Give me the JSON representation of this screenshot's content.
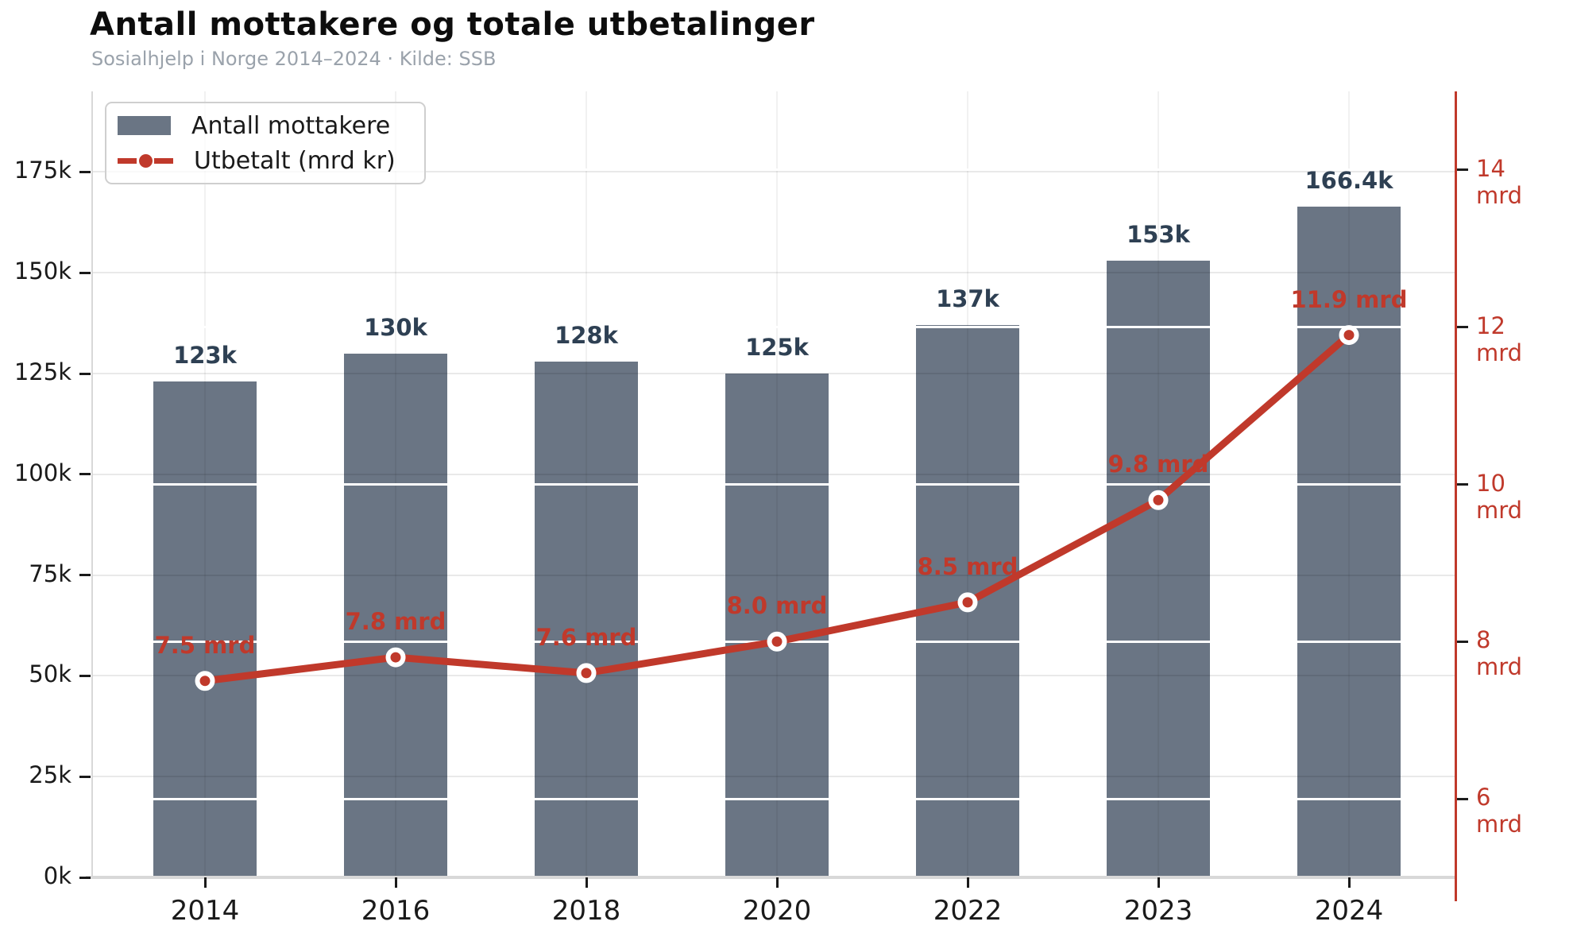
{
  "header": {
    "title": "Antall mottakere og totale utbetalinger",
    "subtitle": "Sosialhjelp i Norge 2014–2024 · Kilde: SSB"
  },
  "legend": {
    "bar_label": "Antall mottakere",
    "line_label": "Utbetalt (mrd kr)"
  },
  "colors": {
    "bar": "#6a7584",
    "bar_value_label": "#2e4053",
    "line": "#c0392b",
    "right_axis": "#c0392b",
    "axis_text": "#1a1a1a",
    "subtitle_gray": "#9aa2ab",
    "marker_ring": "#ffffff"
  },
  "chart_data": {
    "type": "bar",
    "subtype": "combo bar + line, dual y-axes",
    "categories": [
      "2014",
      "2016",
      "2018",
      "2020",
      "2022",
      "2023",
      "2024"
    ],
    "series": [
      {
        "name": "Antall mottakere",
        "type": "bar",
        "axis": "left",
        "values": [
          123,
          130,
          128,
          125,
          137,
          153,
          166.4
        ],
        "value_labels": [
          "123k",
          "130k",
          "128k",
          "125k",
          "137k",
          "153k",
          "166.4k"
        ],
        "unit": "thousand recipients"
      },
      {
        "name": "Utbetalt (mrd kr)",
        "type": "line",
        "axis": "right",
        "values": [
          7.5,
          7.8,
          7.6,
          8.0,
          8.5,
          9.8,
          11.9
        ],
        "value_labels": [
          "7.5 mrd",
          "7.8 mrd",
          "7.6 mrd",
          "8.0 mrd",
          "8.5 mrd",
          "9.8 mrd",
          "11.9 mrd"
        ],
        "unit": "mrd kr"
      }
    ],
    "left_axis": {
      "tick_labels": [
        "0k",
        "25k",
        "50k",
        "75k",
        "100k",
        "125k",
        "150k",
        "175k"
      ],
      "tick_values": [
        0,
        25,
        50,
        75,
        100,
        125,
        150,
        175
      ],
      "ylim": [
        0,
        195
      ]
    },
    "right_axis": {
      "tick_labels": [
        "6 mrd",
        "8 mrd",
        "10 mrd",
        "12 mrd",
        "14 mrd"
      ],
      "tick_values": [
        6,
        8,
        10,
        12,
        14
      ],
      "ylim": [
        5,
        15
      ]
    },
    "grid": true,
    "legend_position": "upper left",
    "title": "Antall mottakere og totale utbetalinger",
    "subtitle": "Sosialhjelp i Norge 2014–2024 · Kilde: SSB"
  }
}
